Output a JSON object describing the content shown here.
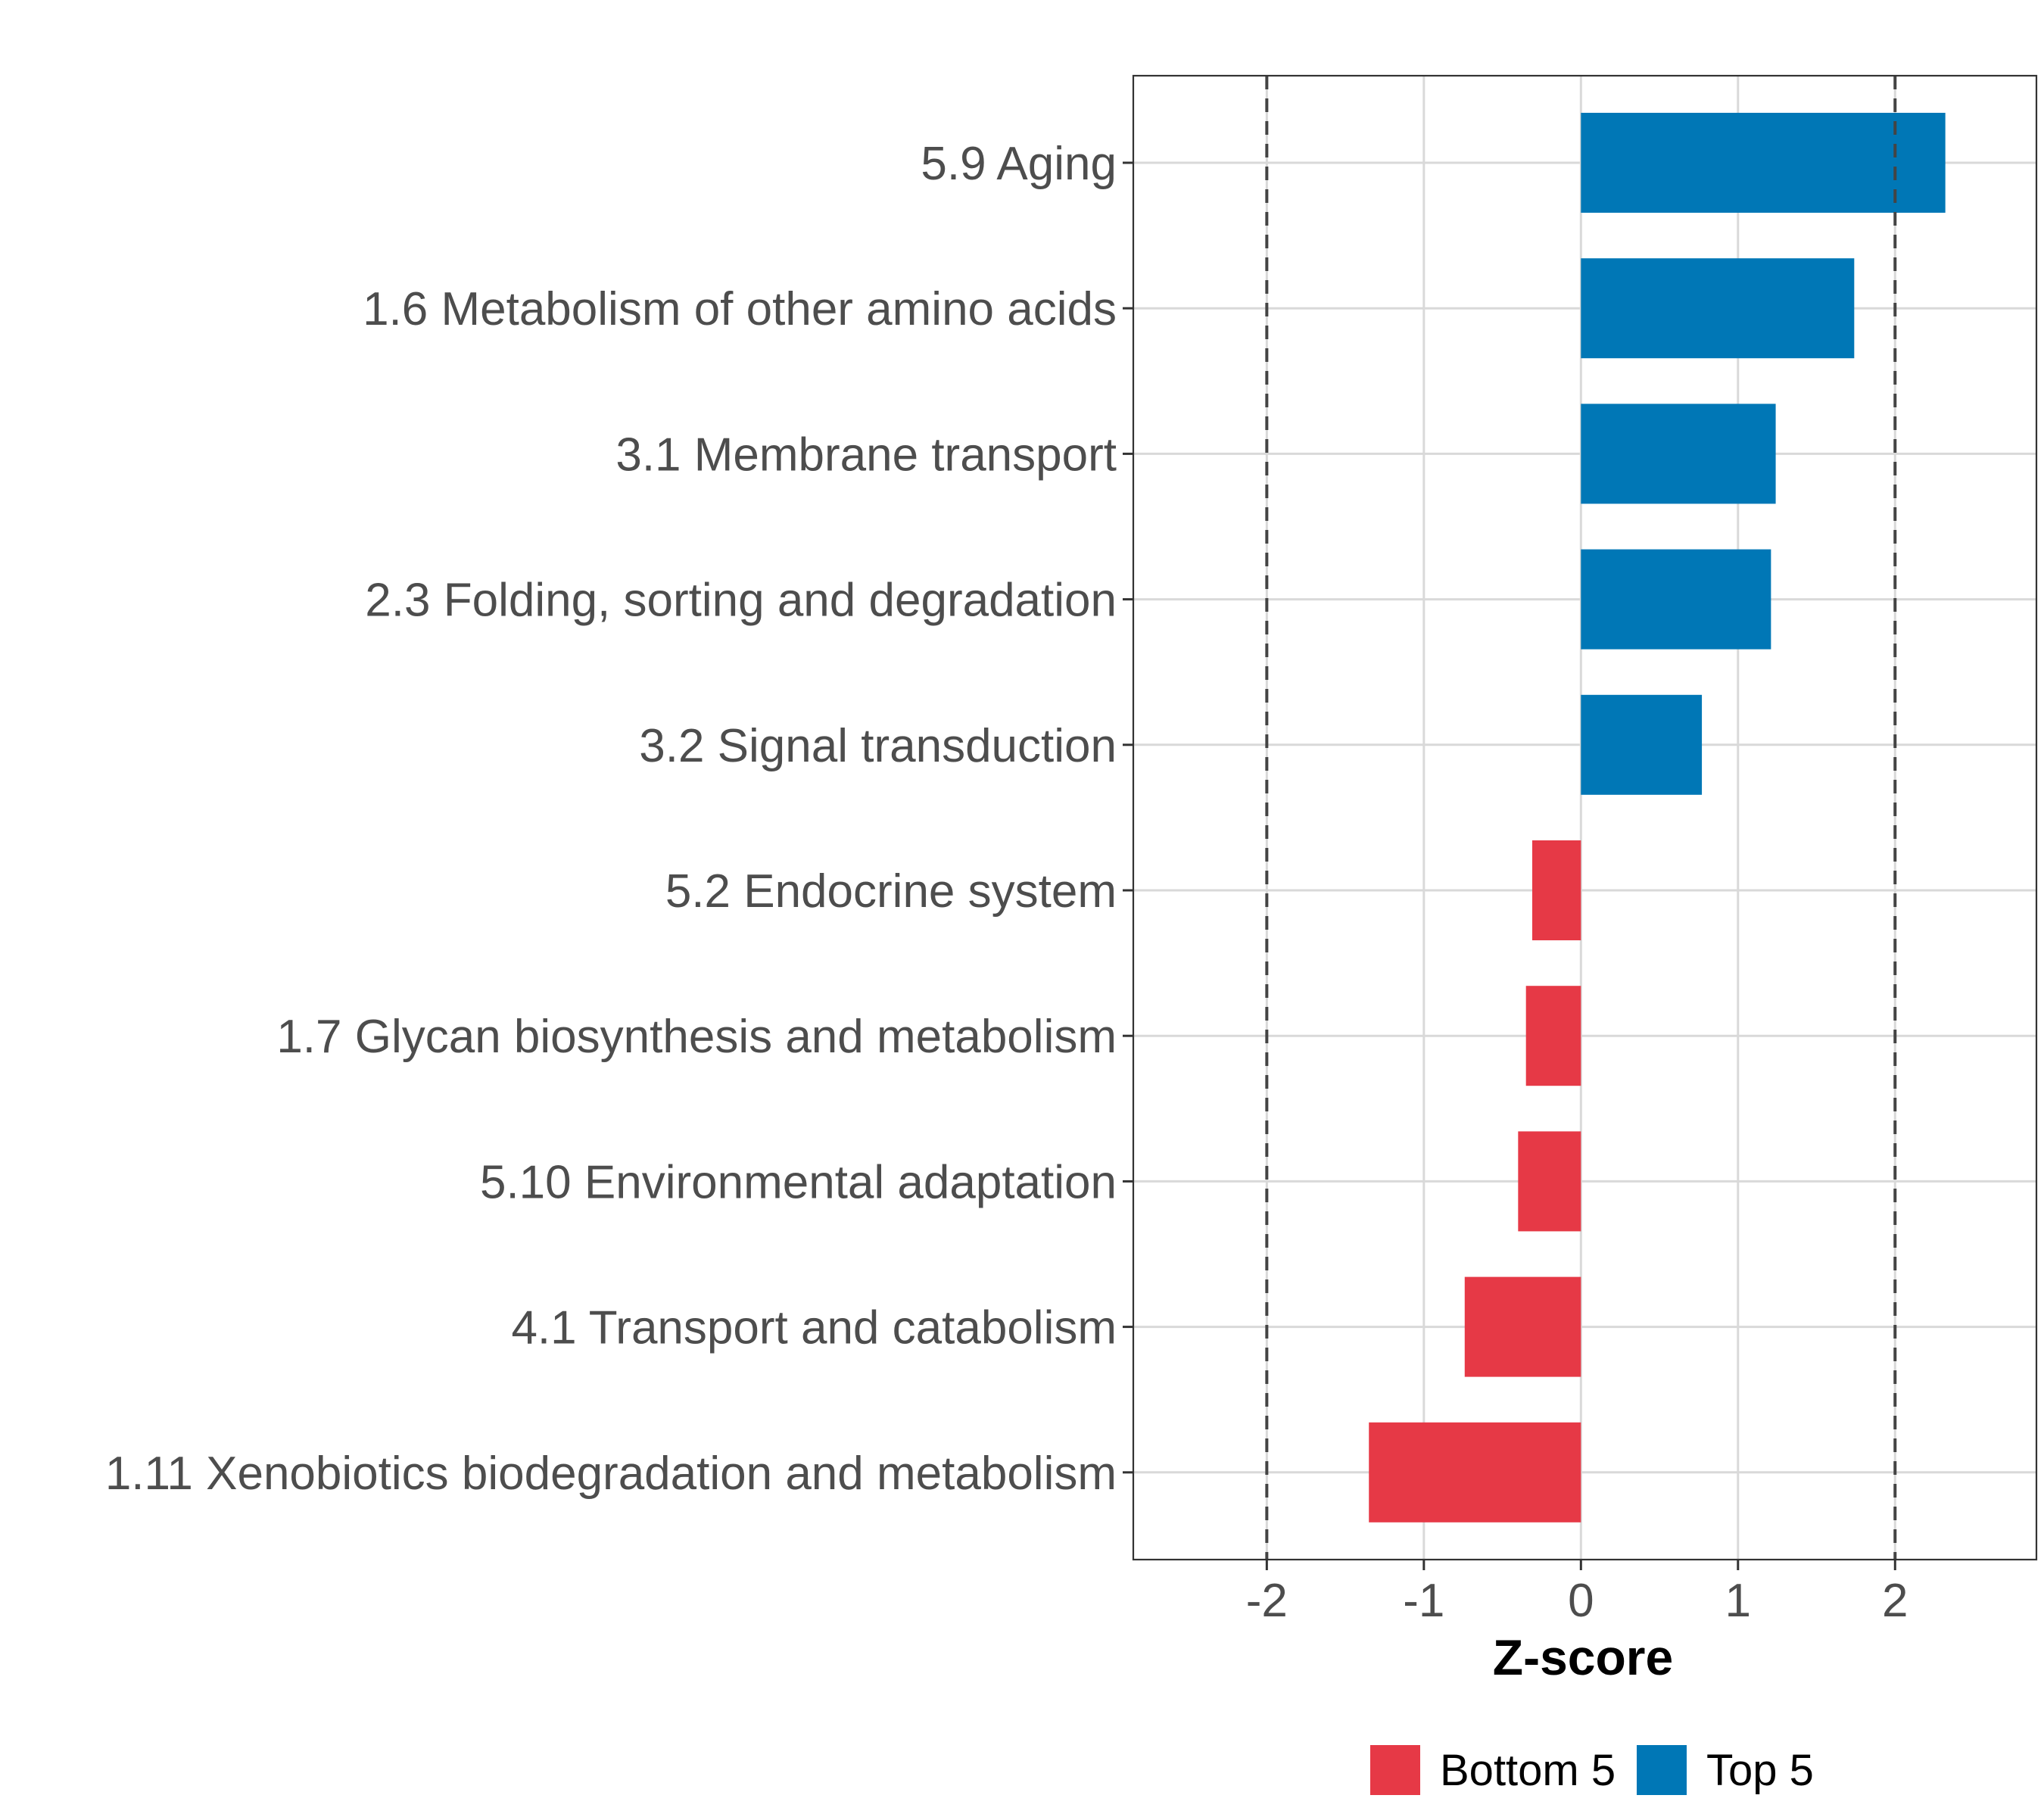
{
  "chart_data": {
    "type": "bar",
    "orientation": "horizontal",
    "title": "",
    "xlabel": "Z-score",
    "ylabel": "",
    "xlim": [
      -2.85,
      2.9
    ],
    "x_ticks": [
      -2,
      -1,
      0,
      1,
      2
    ],
    "x_tick_labels": [
      "-2",
      "-1",
      "0",
      "1",
      "2"
    ],
    "reference_lines": [
      -2,
      2
    ],
    "grid": true,
    "categories": [
      "5.9 Aging",
      "1.6 Metabolism of other amino acids",
      "3.1 Membrane transport",
      "2.3 Folding, sorting and degradation",
      "3.2 Signal transduction",
      "5.2 Endocrine system",
      "1.7 Glycan biosynthesis and metabolism",
      "5.10 Environmental adaptation",
      "4.1 Transport and catabolism",
      "1.11 Xenobiotics biodegradation and metabolism"
    ],
    "values": [
      2.32,
      1.74,
      1.24,
      1.21,
      0.77,
      -0.31,
      -0.35,
      -0.4,
      -0.74,
      -1.35
    ],
    "groups": [
      "Top 5",
      "Top 5",
      "Top 5",
      "Top 5",
      "Top 5",
      "Bottom 5",
      "Bottom 5",
      "Bottom 5",
      "Bottom 5",
      "Bottom 5"
    ],
    "legend": [
      {
        "label": "Bottom 5",
        "color": "#e63946"
      },
      {
        "label": "Top 5",
        "color": "#0077b6"
      }
    ],
    "legend_position": "bottom"
  }
}
